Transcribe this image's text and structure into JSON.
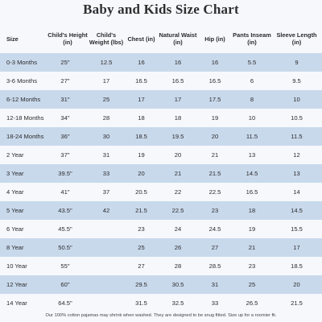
{
  "title": "Baby and Kids Size Chart",
  "columns": [
    "Size",
    "Child's Height (in)",
    "Child's Weight (lbs)",
    "Chest (in)",
    "Natural Waist (in)",
    "Hip (in)",
    "Pants Inseam (in)",
    "Sleeve Length (in)"
  ],
  "rows": [
    [
      "0-3 Months",
      "25\"",
      "12.5",
      "16",
      "16",
      "16",
      "5.5",
      "9"
    ],
    [
      "3-6 Months",
      "27\"",
      "17",
      "16.5",
      "16.5",
      "16.5",
      "6",
      "9.5"
    ],
    [
      "6-12 Months",
      "31\"",
      "25",
      "17",
      "17",
      "17.5",
      "8",
      "10"
    ],
    [
      "12-18 Months",
      "34\"",
      "28",
      "18",
      "18",
      "19",
      "10",
      "10.5"
    ],
    [
      "18-24 Months",
      "36\"",
      "30",
      "18.5",
      "19.5",
      "20",
      "11.5",
      "11.5"
    ],
    [
      "2 Year",
      "37\"",
      "31",
      "19",
      "20",
      "21",
      "13",
      "12"
    ],
    [
      "3 Year",
      "39.5\"",
      "33",
      "20",
      "21",
      "21.5",
      "14.5",
      "13"
    ],
    [
      "4 Year",
      "41\"",
      "37",
      "20.5",
      "22",
      "22.5",
      "16.5",
      "14"
    ],
    [
      "5 Year",
      "43.5\"",
      "42",
      "21.5",
      "22.5",
      "23",
      "18",
      "14.5"
    ],
    [
      "6 Year",
      "45.5\"",
      "",
      "23",
      "24",
      "24.5",
      "19",
      "15.5"
    ],
    [
      "8 Year",
      "50.5\"",
      "",
      "25",
      "26",
      "27",
      "21",
      "17"
    ],
    [
      "10 Year",
      "55\"",
      "",
      "27",
      "28",
      "28.5",
      "23",
      "18.5"
    ],
    [
      "12 Year",
      "60\"",
      "",
      "29.5",
      "30.5",
      "31",
      "25",
      "20"
    ],
    [
      "14 Year",
      "64.5\"",
      "",
      "31.5",
      "32.5",
      "33",
      "26.5",
      "21.5"
    ]
  ],
  "footnote": "Our 100% cotton pajamas may shrink when washed. They are designed to be snug fitted. Size up for a roomier fit.",
  "colors": {
    "background": "#f6f8fc",
    "stripe": "#c9d9ec",
    "text": "#2b2b2b"
  }
}
